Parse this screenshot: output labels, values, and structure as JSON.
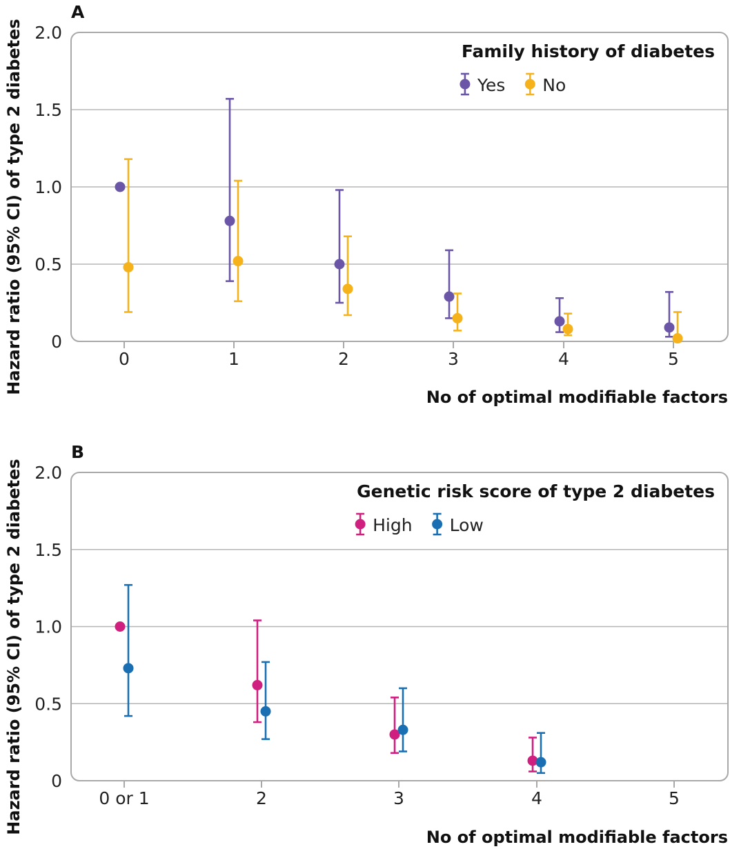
{
  "chart_data": [
    {
      "panel": "A",
      "type": "scatter",
      "xlabel": "No of optimal modifiable factors",
      "ylabel": "Hazard ratio (95% CI) of type 2 diabetes",
      "ylim": [
        0,
        2.0
      ],
      "yticks": [
        "0",
        "0.5",
        "1.0",
        "1.5",
        "2.0"
      ],
      "categories": [
        "0",
        "1",
        "2",
        "3",
        "4",
        "5"
      ],
      "legend_title": "Family history of diabetes",
      "legend_position": "top-right",
      "grid": true,
      "series": [
        {
          "name": "Yes",
          "color": "#6B55A6",
          "values": [
            1.0,
            0.78,
            0.5,
            0.29,
            0.13,
            0.09
          ],
          "ci_low": [
            null,
            0.39,
            0.25,
            0.15,
            0.06,
            0.03
          ],
          "ci_high": [
            null,
            1.57,
            0.98,
            0.59,
            0.28,
            0.32
          ]
        },
        {
          "name": "No",
          "color": "#F5B21B",
          "values": [
            0.48,
            0.52,
            0.34,
            0.15,
            0.08,
            0.02
          ],
          "ci_low": [
            0.19,
            0.26,
            0.17,
            0.07,
            0.04,
            0.0
          ],
          "ci_high": [
            1.18,
            1.04,
            0.68,
            0.31,
            0.18,
            0.19
          ]
        }
      ]
    },
    {
      "panel": "B",
      "type": "scatter",
      "xlabel": "No of optimal modifiable factors",
      "ylabel": "Hazard ratio (95% CI) of type 2 diabetes",
      "ylim": [
        0,
        2.0
      ],
      "yticks": [
        "0",
        "0.5",
        "1.0",
        "1.5",
        "2.0"
      ],
      "categories": [
        "0 or 1",
        "2",
        "3",
        "4",
        "5"
      ],
      "legend_title": "Genetic risk score of type 2 diabetes",
      "legend_position": "top-right",
      "grid": true,
      "series": [
        {
          "name": "High",
          "color": "#D0207F",
          "values": [
            1.0,
            0.62,
            0.3,
            0.13,
            null
          ],
          "ci_low": [
            null,
            0.38,
            0.18,
            0.06,
            null
          ],
          "ci_high": [
            null,
            1.04,
            0.54,
            0.28,
            null
          ]
        },
        {
          "name": "Low",
          "color": "#1A6FB3",
          "values": [
            0.73,
            0.45,
            0.33,
            0.12,
            null
          ],
          "ci_low": [
            0.42,
            0.27,
            0.19,
            0.05,
            null
          ],
          "ci_high": [
            1.27,
            0.77,
            0.6,
            0.31,
            null
          ]
        }
      ]
    }
  ]
}
